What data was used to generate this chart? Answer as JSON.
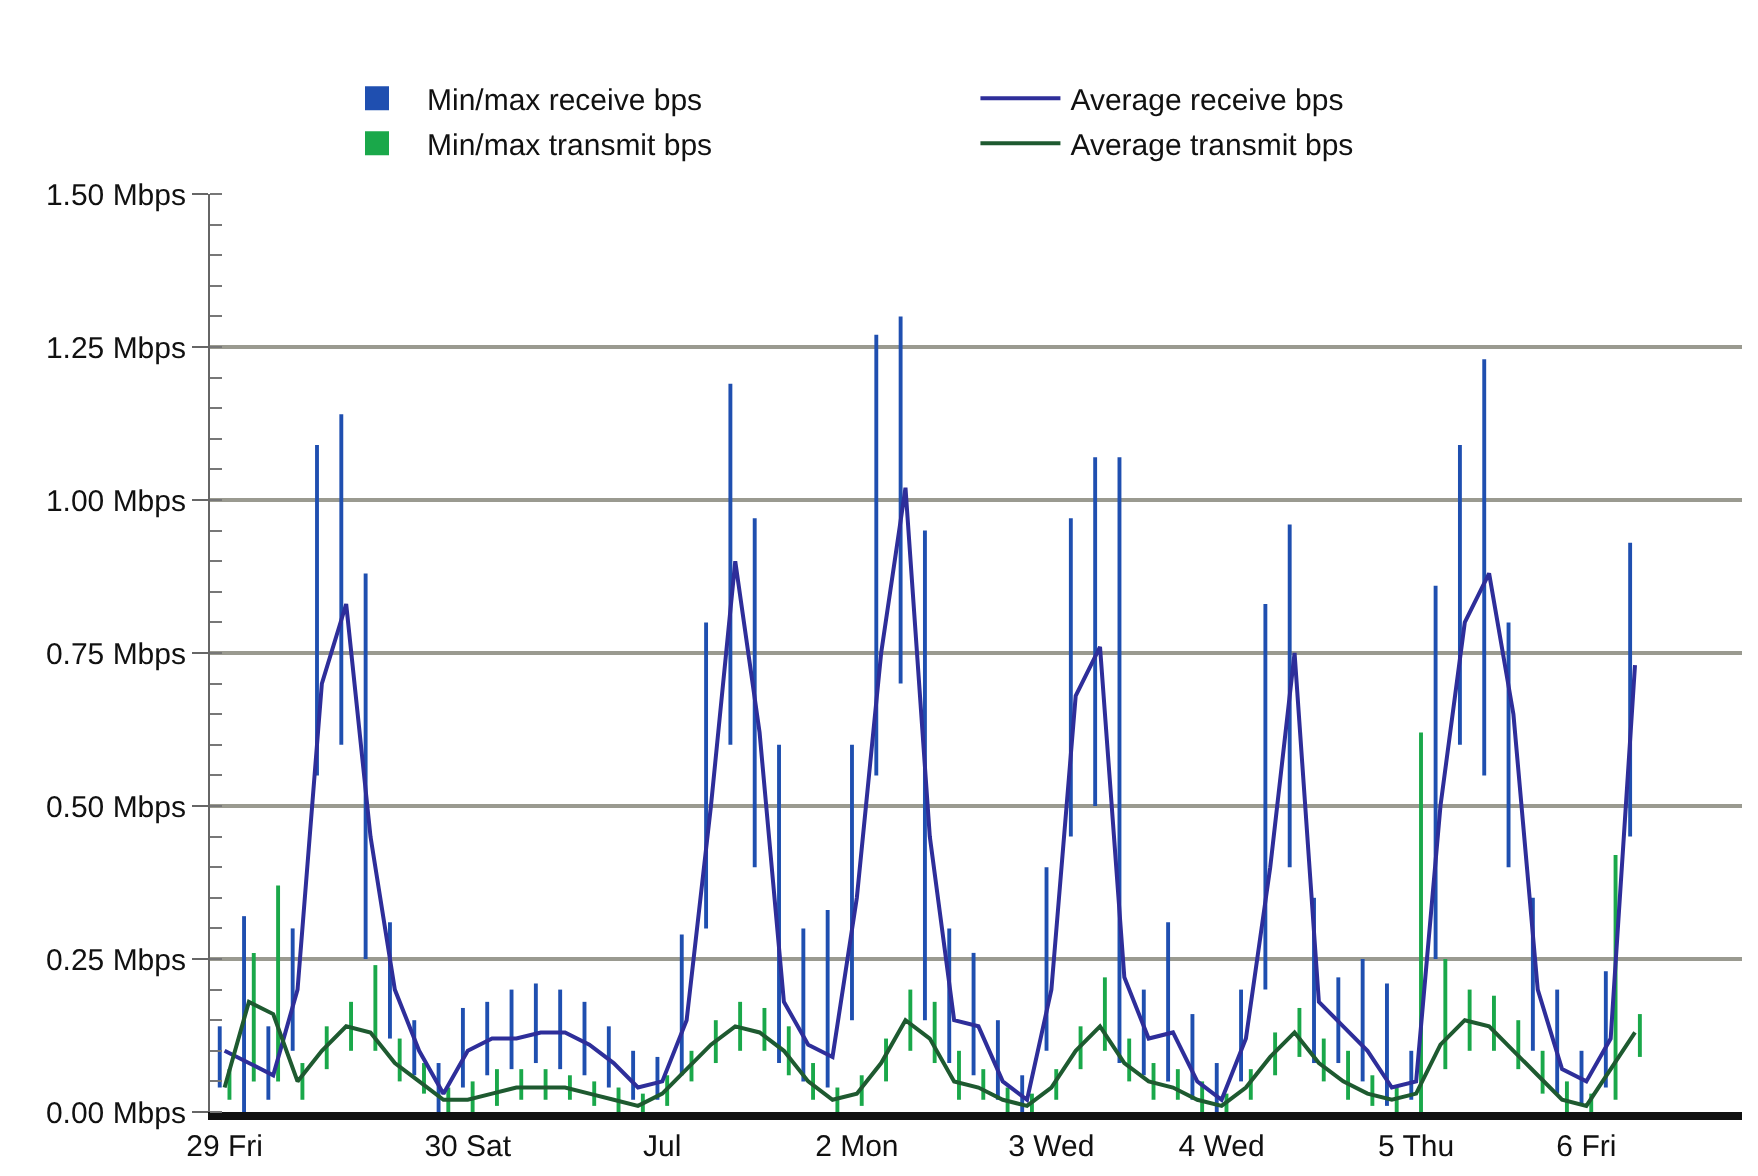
{
  "chart_data": {
    "type": "line",
    "categories": [
      "29 Fri",
      null,
      null,
      null,
      null,
      null,
      null,
      null,
      null,
      null,
      "30 Sat",
      null,
      null,
      null,
      null,
      null,
      null,
      null,
      "Jul",
      null,
      null,
      null,
      null,
      null,
      null,
      null,
      "2 Mon",
      null,
      null,
      null,
      null,
      null,
      null,
      null,
      "3 Wed",
      null,
      null,
      null,
      null,
      null,
      null,
      "4 Wed",
      null,
      null,
      null,
      null,
      null,
      null,
      null,
      "5 Thu",
      null,
      null,
      null,
      null,
      null,
      null,
      "6 Fri",
      null,
      null
    ],
    "series": [
      {
        "name": "Min/max receive bps",
        "type": "bar",
        "color": "#1f4fb0",
        "base": [
          0.04,
          0,
          0.02,
          0.1,
          0.55,
          0.6,
          0.25,
          0.12,
          0.06,
          0,
          0.04,
          0.06,
          0.07,
          0.08,
          0.07,
          0.06,
          0.04,
          0.02,
          0.02,
          0.06,
          0.3,
          0.6,
          0.4,
          0.08,
          0.05,
          0.04,
          0.15,
          0.55,
          0.7,
          0.15,
          0.08,
          0.06,
          0.02,
          0,
          0.1,
          0.45,
          0.5,
          0.08,
          0.06,
          0.05,
          0.02,
          0,
          0.05,
          0.2,
          0.4,
          0.08,
          0.08,
          0.05,
          0.01,
          0.02,
          0.25,
          0.6,
          0.55,
          0.4,
          0.1,
          0.03,
          0.01,
          0.04,
          0.45
        ],
        "values": [
          0.1,
          0.32,
          0.12,
          0.2,
          0.54,
          0.54,
          0.63,
          0.19,
          0.09,
          0.08,
          0.13,
          0.12,
          0.13,
          0.13,
          0.13,
          0.12,
          0.1,
          0.08,
          0.07,
          0.23,
          0.5,
          0.59,
          0.57,
          0.52,
          0.25,
          0.29,
          0.45,
          0.72,
          0.6,
          0.8,
          0.22,
          0.2,
          0.13,
          0.06,
          0.3,
          0.52,
          0.57,
          0.99,
          0.14,
          0.26,
          0.14,
          0.08,
          0.15,
          0.63,
          0.56,
          0.27,
          0.14,
          0.2,
          0.2,
          0.08,
          0.61,
          0.49,
          0.68,
          0.4,
          0.25,
          0.17,
          0.09,
          0.19,
          0.48
        ]
      },
      {
        "name": "Average receive bps",
        "color": "#2e2e9a",
        "values": [
          0.1,
          0.08,
          0.06,
          0.2,
          0.7,
          0.83,
          0.45,
          0.2,
          0.1,
          0.03,
          0.1,
          0.12,
          0.12,
          0.13,
          0.13,
          0.11,
          0.08,
          0.04,
          0.05,
          0.15,
          0.5,
          0.9,
          0.62,
          0.18,
          0.11,
          0.09,
          0.35,
          0.75,
          1.02,
          0.45,
          0.15,
          0.14,
          0.05,
          0.02,
          0.2,
          0.68,
          0.76,
          0.22,
          0.12,
          0.13,
          0.05,
          0.02,
          0.12,
          0.4,
          0.75,
          0.18,
          0.14,
          0.1,
          0.04,
          0.05,
          0.5,
          0.8,
          0.88,
          0.65,
          0.2,
          0.07,
          0.05,
          0.12,
          0.73
        ]
      },
      {
        "name": "Min/max transmit bps",
        "type": "bar",
        "color": "#1aa84a",
        "base": [
          0.02,
          0.05,
          0.05,
          0.02,
          0.07,
          0.1,
          0.1,
          0.05,
          0.03,
          0,
          0,
          0.01,
          0.02,
          0.02,
          0.02,
          0.01,
          0,
          0,
          0.01,
          0.05,
          0.08,
          0.1,
          0.1,
          0.06,
          0.02,
          0,
          0.01,
          0.05,
          0.1,
          0.08,
          0.02,
          0.02,
          0,
          0,
          0.02,
          0.07,
          0.1,
          0.05,
          0.02,
          0.02,
          0,
          0,
          0.02,
          0.06,
          0.09,
          0.05,
          0.02,
          0.01,
          0,
          0,
          0.07,
          0.1,
          0.1,
          0.07,
          0.03,
          0,
          0,
          0.02,
          0.09
        ],
        "values": [
          0.05,
          0.21,
          0.32,
          0.06,
          0.07,
          0.08,
          0.14,
          0.07,
          0.05,
          0.04,
          0.05,
          0.06,
          0.05,
          0.05,
          0.04,
          0.04,
          0.04,
          0.03,
          0.05,
          0.05,
          0.07,
          0.08,
          0.07,
          0.08,
          0.06,
          0.04,
          0.05,
          0.07,
          0.1,
          0.1,
          0.08,
          0.05,
          0.04,
          0.03,
          0.05,
          0.07,
          0.12,
          0.07,
          0.06,
          0.05,
          0.05,
          0.03,
          0.05,
          0.07,
          0.08,
          0.07,
          0.08,
          0.05,
          0.04,
          0.62,
          0.18,
          0.1,
          0.09,
          0.08,
          0.07,
          0.05,
          0.03,
          0.4,
          0.07
        ]
      },
      {
        "name": "Average transmit bps",
        "color": "#1e5a30",
        "values": [
          0.04,
          0.18,
          0.16,
          0.05,
          0.1,
          0.14,
          0.13,
          0.08,
          0.05,
          0.02,
          0.02,
          0.03,
          0.04,
          0.04,
          0.04,
          0.03,
          0.02,
          0.01,
          0.03,
          0.07,
          0.11,
          0.14,
          0.13,
          0.1,
          0.05,
          0.02,
          0.03,
          0.08,
          0.15,
          0.12,
          0.05,
          0.04,
          0.02,
          0.01,
          0.04,
          0.1,
          0.14,
          0.08,
          0.05,
          0.04,
          0.02,
          0.01,
          0.04,
          0.09,
          0.13,
          0.08,
          0.05,
          0.03,
          0.02,
          0.03,
          0.11,
          0.15,
          0.14,
          0.1,
          0.06,
          0.02,
          0.01,
          0.07,
          0.13
        ]
      }
    ],
    "ylim": [
      0,
      1.5
    ],
    "yticks": [
      {
        "value": 0,
        "label": "0.00 Mbps"
      },
      {
        "value": 0.25,
        "label": "0.25 Mbps"
      },
      {
        "value": 0.5,
        "label": "0.50 Mbps"
      },
      {
        "value": 0.75,
        "label": "0.75 Mbps"
      },
      {
        "value": 1,
        "label": "1.00 Mbps"
      },
      {
        "value": 1.25,
        "label": "1.25 Mbps"
      },
      {
        "value": 1.5,
        "label": "1.50 Mbps"
      }
    ],
    "grid": "y",
    "legend": "top"
  }
}
